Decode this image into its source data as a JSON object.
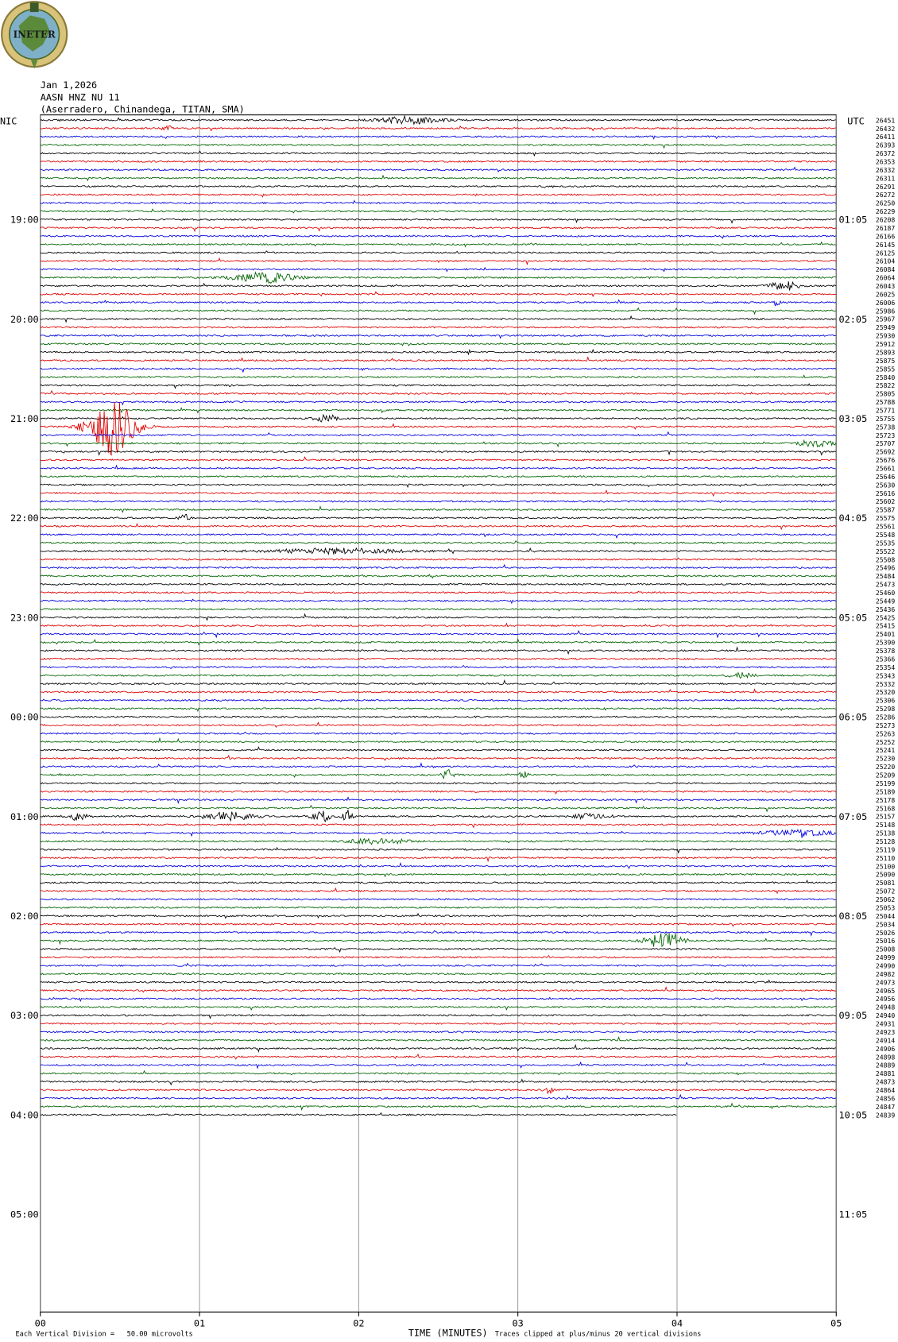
{
  "header": {
    "logo": "INETER",
    "date": "Jan 1,2026",
    "station": "AASN HNZ NU 11",
    "location": "(Aserradero, Chinandega, TITAN, SMA)"
  },
  "left_axis": {
    "title": "NIC",
    "labels": [
      "19:00",
      "20:00",
      "21:00",
      "22:00",
      "23:00",
      "00:00",
      "01:00",
      "02:00",
      "03:00",
      "04:00",
      "05:00"
    ]
  },
  "right_axis": {
    "title": "UTC",
    "labels": [
      "01:05",
      "02:05",
      "03:05",
      "04:05",
      "05:05",
      "06:05",
      "07:05",
      "08:05",
      "09:05",
      "10:05",
      "11:05"
    ]
  },
  "line_labels": [
    "26451",
    "26432",
    "26411",
    "26393",
    "26372",
    "26353",
    "26332",
    "26311",
    "26291",
    "26272",
    "26250",
    "26229",
    "26208",
    "26187",
    "26166",
    "26145",
    "26125",
    "26104",
    "26084",
    "26064",
    "26043",
    "26025",
    "26006",
    "25986",
    "25967",
    "25949",
    "25930",
    "25912",
    "25893",
    "25875",
    "25855",
    "25840",
    "25822",
    "25805",
    "25788",
    "25771",
    "25755",
    "25738",
    "25723",
    "25707",
    "25692",
    "25676",
    "25661",
    "25646",
    "25630",
    "25616",
    "25602",
    "25587",
    "25575",
    "25561",
    "25548",
    "25535",
    "25522",
    "25508",
    "25496",
    "25484",
    "25473",
    "25460",
    "25449",
    "25436",
    "25425",
    "25415",
    "25401",
    "25390",
    "25378",
    "25366",
    "25354",
    "25343",
    "25332",
    "25320",
    "25306",
    "25298",
    "25286",
    "25273",
    "25263",
    "25252",
    "25241",
    "25230",
    "25220",
    "25209",
    "25199",
    "25189",
    "25178",
    "25168",
    "25157",
    "25148",
    "25138",
    "25128",
    "25119",
    "25110",
    "25100",
    "25090",
    "25081",
    "25072",
    "25062",
    "25053",
    "25044",
    "25034",
    "25026",
    "25016",
    "25008",
    "24999",
    "24990",
    "24982",
    "24973",
    "24965",
    "24956",
    "24948",
    "24940",
    "24931",
    "24923",
    "24914",
    "24906",
    "24898",
    "24889",
    "24881",
    "24873",
    "24864",
    "24856",
    "24847",
    "24839"
  ],
  "x_axis": {
    "title": "TIME (MINUTES)",
    "ticks": [
      "00",
      "01",
      "02",
      "03",
      "04",
      "05"
    ]
  },
  "footer": {
    "scale": "Each Vertical Division =   50.00 microvolts",
    "clip": "Traces clipped at plus/minus 20 vertical divisions"
  }
}
